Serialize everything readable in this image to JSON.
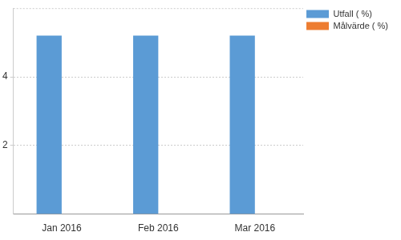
{
  "chart_data": {
    "type": "bar",
    "categories": [
      "Jan 2016",
      "Feb 2016",
      "Mar 2016"
    ],
    "series": [
      {
        "name": "Utfall ( %)",
        "color": "#5b9bd5",
        "values": [
          5.2,
          5.2,
          5.2
        ]
      },
      {
        "name": "Målvärde ( %)",
        "color": "#ed7d31",
        "values": [
          null,
          null,
          null
        ]
      }
    ],
    "ylim": [
      0,
      6
    ],
    "yticks": [
      2,
      4
    ],
    "grid": true,
    "legend": "top right"
  }
}
